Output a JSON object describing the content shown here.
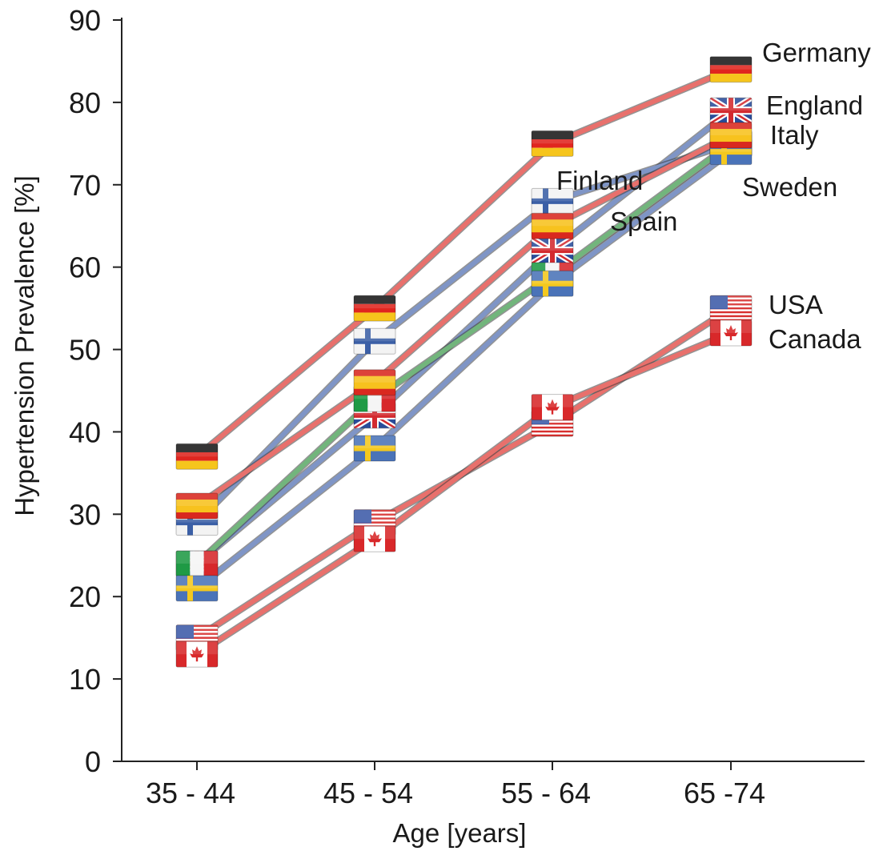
{
  "chart_data": {
    "type": "line",
    "title": "",
    "xlabel": "Age [years]",
    "ylabel": "Hypertension Prevalence [%]",
    "categories": [
      "35 - 44",
      "45 - 54",
      "55 - 64",
      "65 -74"
    ],
    "ylim": [
      0,
      90
    ],
    "yticks": [
      "0",
      "10",
      "20",
      "30",
      "40",
      "50",
      "60",
      "70",
      "80",
      "90"
    ],
    "grid": false,
    "legend": "direct labels next to the right end of each line",
    "markers": "national flags",
    "series": [
      {
        "name": "Germany",
        "values": [
          37,
          55,
          75,
          84
        ],
        "color": "#e8706c",
        "flag": "germany"
      },
      {
        "name": "England",
        "values": [
          24,
          42,
          62,
          79
        ],
        "color": "#7f95c6",
        "flag": "uk"
      },
      {
        "name": "Italy",
        "values": [
          24,
          44,
          59,
          75
        ],
        "color": "#72b57c",
        "flag": "italy"
      },
      {
        "name": "Finland",
        "values": [
          29,
          51,
          68,
          75
        ],
        "color": "#7f95c6",
        "flag": "finland"
      },
      {
        "name": "Sweden",
        "values": [
          21,
          38,
          58,
          74
        ],
        "color": "#7f95c6",
        "flag": "sweden"
      },
      {
        "name": "Spain",
        "values": [
          31,
          46,
          65,
          76
        ],
        "color": "#e8706c",
        "flag": "spain"
      },
      {
        "name": "USA",
        "values": [
          15,
          29,
          41,
          55
        ],
        "color": "#e8706c",
        "flag": "usa"
      },
      {
        "name": "Canada",
        "values": [
          13,
          27,
          43,
          52
        ],
        "color": "#e8706c",
        "flag": "canada"
      }
    ]
  }
}
